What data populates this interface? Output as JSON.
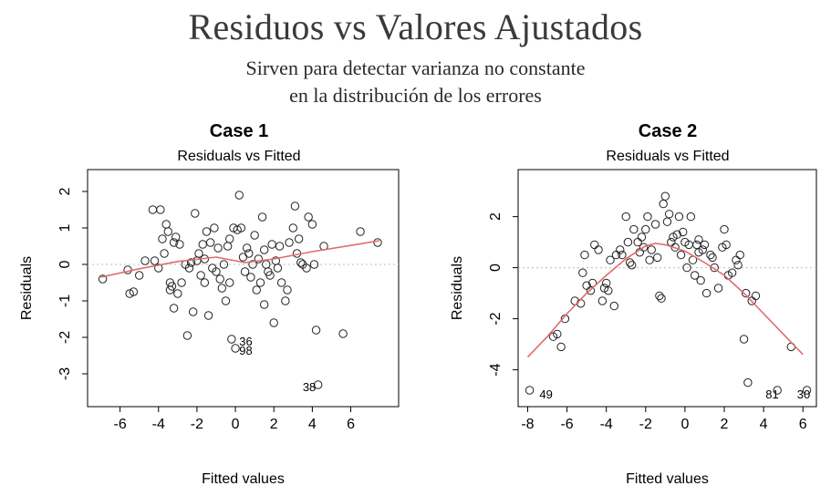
{
  "slide": {
    "title": "Residuos vs Valores Ajustados",
    "subtitle_line1": "Sirven para detectar varianza no constante",
    "subtitle_line2": "en la distribución de los errores"
  },
  "chart_data": [
    {
      "type": "scatter",
      "title": "Case 1",
      "subtitle": "Residuals vs Fitted",
      "xlabel": "Fitted values",
      "ylabel": "Residuals",
      "xlim": [
        -7.5,
        8.3
      ],
      "ylim": [
        -3.8,
        2.5
      ],
      "xticks": [
        -6,
        -4,
        -2,
        0,
        2,
        4,
        6
      ],
      "yticks": [
        -3,
        -2,
        -1,
        0,
        1,
        2
      ],
      "reference_line": 0,
      "smooth_color": "#e06c6c",
      "smooth": [
        [
          -7.0,
          -0.35
        ],
        [
          -5.0,
          -0.12
        ],
        [
          -3.0,
          0.08
        ],
        [
          -1.0,
          0.2
        ],
        [
          0.5,
          0.05
        ],
        [
          2.0,
          0.15
        ],
        [
          4.0,
          0.35
        ],
        [
          6.0,
          0.52
        ],
        [
          7.5,
          0.65
        ]
      ],
      "labels": [
        {
          "text": "36",
          "x": 0.2,
          "y": -2.1
        },
        {
          "text": "98",
          "x": 0.2,
          "y": -2.35
        },
        {
          "text": "38",
          "x": 3.5,
          "y": -3.35
        }
      ],
      "points": [
        [
          -6.9,
          -0.4
        ],
        [
          -5.6,
          -0.15
        ],
        [
          -5.5,
          -0.8
        ],
        [
          -5.3,
          -0.75
        ],
        [
          -5.0,
          -0.3
        ],
        [
          -4.7,
          0.1
        ],
        [
          -4.3,
          1.5
        ],
        [
          -4.2,
          0.1
        ],
        [
          -4.0,
          -0.1
        ],
        [
          -3.9,
          1.5
        ],
        [
          -3.8,
          0.7
        ],
        [
          -3.6,
          1.1
        ],
        [
          -3.5,
          0.9
        ],
        [
          -3.4,
          -0.5
        ],
        [
          -3.4,
          -0.7
        ],
        [
          -3.3,
          -0.6
        ],
        [
          -3.2,
          -1.2
        ],
        [
          -3.2,
          0.6
        ],
        [
          -3.1,
          0.75
        ],
        [
          -3.0,
          -0.8
        ],
        [
          -2.8,
          -0.5
        ],
        [
          -2.6,
          0.0
        ],
        [
          -2.5,
          -1.95
        ],
        [
          -2.4,
          -0.1
        ],
        [
          -2.3,
          0.05
        ],
        [
          -2.2,
          -1.3
        ],
        [
          -2.1,
          1.4
        ],
        [
          -2.0,
          0.1
        ],
        [
          -1.9,
          0.3
        ],
        [
          -1.8,
          -0.3
        ],
        [
          -1.7,
          0.55
        ],
        [
          -1.6,
          -0.5
        ],
        [
          -1.5,
          0.9
        ],
        [
          -1.4,
          -1.4
        ],
        [
          -1.3,
          0.6
        ],
        [
          -1.2,
          -0.1
        ],
        [
          -1.1,
          1.0
        ],
        [
          -1.0,
          -0.2
        ],
        [
          -0.9,
          0.45
        ],
        [
          -0.8,
          -0.4
        ],
        [
          -0.7,
          -0.65
        ],
        [
          -0.6,
          0.0
        ],
        [
          -0.5,
          -1.0
        ],
        [
          -0.4,
          0.5
        ],
        [
          -0.3,
          -0.5
        ],
        [
          -0.2,
          -2.05
        ],
        [
          -0.1,
          1.0
        ],
        [
          0.0,
          -2.3
        ],
        [
          0.1,
          0.95
        ],
        [
          0.2,
          1.9
        ],
        [
          0.3,
          1.0
        ],
        [
          0.4,
          0.2
        ],
        [
          0.5,
          -0.2
        ],
        [
          0.6,
          0.45
        ],
        [
          0.7,
          0.3
        ],
        [
          0.9,
          0.0
        ],
        [
          1.1,
          -0.7
        ],
        [
          1.2,
          0.15
        ],
        [
          1.3,
          -0.5
        ],
        [
          1.4,
          1.3
        ],
        [
          1.5,
          -1.1
        ],
        [
          1.6,
          0.0
        ],
        [
          1.7,
          -0.2
        ],
        [
          1.8,
          -0.3
        ],
        [
          1.9,
          0.55
        ],
        [
          2.0,
          -1.6
        ],
        [
          2.1,
          0.1
        ],
        [
          2.2,
          -0.1
        ],
        [
          2.3,
          0.5
        ],
        [
          2.4,
          -0.5
        ],
        [
          2.6,
          -1.0
        ],
        [
          2.8,
          0.6
        ],
        [
          3.0,
          1.0
        ],
        [
          3.1,
          1.6
        ],
        [
          3.2,
          0.3
        ],
        [
          3.3,
          0.7
        ],
        [
          3.4,
          0.05
        ],
        [
          3.5,
          0.0
        ],
        [
          3.8,
          1.3
        ],
        [
          4.0,
          1.1
        ],
        [
          4.1,
          0.0
        ],
        [
          4.2,
          -1.8
        ],
        [
          4.3,
          -3.3
        ],
        [
          4.6,
          0.5
        ],
        [
          5.6,
          -1.9
        ],
        [
          6.5,
          0.9
        ],
        [
          7.4,
          0.6
        ],
        [
          -1.6,
          0.15
        ],
        [
          1.0,
          0.8
        ],
        [
          -2.9,
          0.55
        ],
        [
          2.7,
          -0.7
        ],
        [
          0.8,
          -0.35
        ],
        [
          -3.7,
          0.3
        ],
        [
          1.5,
          0.4
        ],
        [
          -0.3,
          0.7
        ],
        [
          3.7,
          -0.1
        ]
      ]
    },
    {
      "type": "scatter",
      "title": "Case 2",
      "subtitle": "Residuals vs Fitted",
      "xlabel": "Fitted values",
      "ylabel": "Residuals",
      "xlim": [
        -8.3,
        6.5
      ],
      "ylim": [
        -5.3,
        3.7
      ],
      "xticks": [
        -8,
        -6,
        -4,
        -2,
        0,
        2,
        4,
        6
      ],
      "yticks": [
        -4,
        -2,
        0,
        2
      ],
      "reference_line": 0,
      "smooth_color": "#e06c6c",
      "smooth": [
        [
          -8.0,
          -3.5
        ],
        [
          -7.0,
          -2.7
        ],
        [
          -6.0,
          -1.8
        ],
        [
          -5.0,
          -1.0
        ],
        [
          -4.0,
          -0.3
        ],
        [
          -3.0,
          0.35
        ],
        [
          -2.0,
          0.85
        ],
        [
          -1.5,
          0.95
        ],
        [
          -1.0,
          0.9
        ],
        [
          0.0,
          0.65
        ],
        [
          1.0,
          0.2
        ],
        [
          2.0,
          -0.3
        ],
        [
          3.0,
          -1.0
        ],
        [
          4.0,
          -1.8
        ],
        [
          5.0,
          -2.6
        ],
        [
          6.0,
          -3.4
        ]
      ],
      "labels": [
        {
          "text": "49",
          "x": -7.4,
          "y": -4.95
        },
        {
          "text": "81",
          "x": 4.1,
          "y": -4.95
        },
        {
          "text": "30",
          "x": 5.7,
          "y": -4.95
        }
      ],
      "points": [
        [
          -7.9,
          -4.8
        ],
        [
          -6.7,
          -2.7
        ],
        [
          -6.5,
          -2.6
        ],
        [
          -6.3,
          -3.1
        ],
        [
          -6.1,
          -2.0
        ],
        [
          -5.6,
          -1.3
        ],
        [
          -5.3,
          -1.4
        ],
        [
          -5.2,
          -0.2
        ],
        [
          -5.1,
          0.5
        ],
        [
          -5.0,
          -0.7
        ],
        [
          -4.7,
          -0.6
        ],
        [
          -4.6,
          0.9
        ],
        [
          -4.4,
          0.7
        ],
        [
          -4.2,
          -1.3
        ],
        [
          -4.1,
          -0.8
        ],
        [
          -4.0,
          -0.6
        ],
        [
          -3.9,
          -0.9
        ],
        [
          -3.8,
          0.3
        ],
        [
          -3.6,
          -1.5
        ],
        [
          -3.5,
          0.5
        ],
        [
          -3.3,
          0.7
        ],
        [
          -3.0,
          2.0
        ],
        [
          -2.9,
          1.0
        ],
        [
          -2.8,
          0.2
        ],
        [
          -2.6,
          1.5
        ],
        [
          -2.4,
          1.0
        ],
        [
          -2.3,
          0.6
        ],
        [
          -2.2,
          1.2
        ],
        [
          -2.1,
          0.8
        ],
        [
          -2.0,
          1.5
        ],
        [
          -1.9,
          2.0
        ],
        [
          -1.8,
          0.3
        ],
        [
          -1.7,
          0.7
        ],
        [
          -1.5,
          1.7
        ],
        [
          -1.4,
          0.4
        ],
        [
          -1.3,
          -1.1
        ],
        [
          -1.2,
          -1.2
        ],
        [
          -1.1,
          2.5
        ],
        [
          -1.0,
          2.8
        ],
        [
          -0.9,
          1.8
        ],
        [
          -0.8,
          2.1
        ],
        [
          -0.7,
          1.0
        ],
        [
          -0.6,
          1.2
        ],
        [
          -0.5,
          0.8
        ],
        [
          -0.4,
          1.3
        ],
        [
          -0.3,
          2.0
        ],
        [
          -0.2,
          0.5
        ],
        [
          0.0,
          1.0
        ],
        [
          0.1,
          0.0
        ],
        [
          0.2,
          0.9
        ],
        [
          0.3,
          2.0
        ],
        [
          0.4,
          0.3
        ],
        [
          0.5,
          -0.3
        ],
        [
          0.6,
          0.9
        ],
        [
          0.7,
          1.1
        ],
        [
          0.8,
          -0.5
        ],
        [
          0.9,
          0.7
        ],
        [
          1.0,
          0.9
        ],
        [
          1.1,
          -1.0
        ],
        [
          1.3,
          0.5
        ],
        [
          1.5,
          0.0
        ],
        [
          1.7,
          -0.8
        ],
        [
          1.9,
          0.8
        ],
        [
          2.0,
          1.5
        ],
        [
          2.1,
          0.9
        ],
        [
          2.2,
          -0.3
        ],
        [
          2.4,
          -0.2
        ],
        [
          2.6,
          0.3
        ],
        [
          2.8,
          0.5
        ],
        [
          3.0,
          -2.8
        ],
        [
          3.1,
          -1.0
        ],
        [
          3.2,
          -4.5
        ],
        [
          3.4,
          -1.3
        ],
        [
          3.6,
          -1.1
        ],
        [
          4.7,
          -4.8
        ],
        [
          5.4,
          -3.1
        ],
        [
          6.2,
          -4.8
        ],
        [
          -4.8,
          -0.9
        ],
        [
          -2.7,
          0.1
        ],
        [
          1.4,
          0.4
        ],
        [
          -0.1,
          1.4
        ],
        [
          2.7,
          0.1
        ],
        [
          -3.2,
          0.5
        ],
        [
          0.7,
          0.6
        ]
      ]
    }
  ]
}
